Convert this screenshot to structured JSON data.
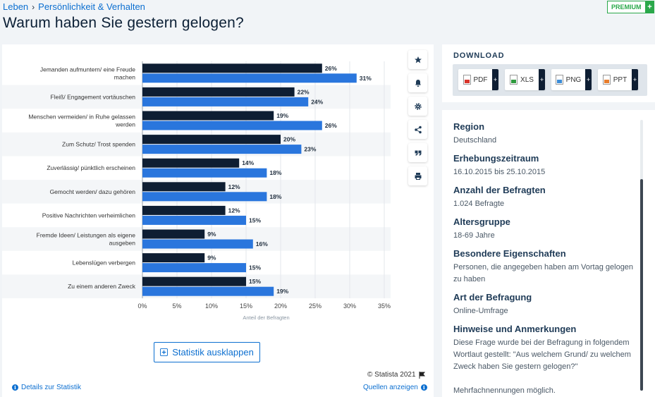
{
  "breadcrumb": {
    "item1": "Leben",
    "sep": "›",
    "item2": "Persönlichkeit & Verhalten"
  },
  "title": "Warum haben Sie gestern gelogen?",
  "premium": {
    "label": "PREMIUM",
    "plus": "+"
  },
  "toolbar": {
    "icons": [
      "star-icon",
      "bell-icon",
      "gear-icon",
      "share-icon",
      "quote-icon",
      "print-icon"
    ]
  },
  "chart_data": {
    "type": "bar",
    "orientation": "horizontal",
    "categories": [
      [
        "Jemanden aufmuntern/ eine Freude",
        "machen"
      ],
      [
        "Fleiß/ Engagement vortäuschen"
      ],
      [
        "Menschen vermeiden/ in Ruhe gelassen",
        "werden"
      ],
      [
        "Zum Schutz/ Trost spenden"
      ],
      [
        "Zuverlässig/ pünktlich erscheinen"
      ],
      [
        "Gemocht werden/ dazu gehören"
      ],
      [
        "Positive Nachrichten verheimlichen"
      ],
      [
        "Fremde Ideen/ Leistungen als eigene",
        "ausgeben"
      ],
      [
        "Lebenslügen verbergen"
      ],
      [
        "Zu einem anderen Zweck"
      ]
    ],
    "series": [
      {
        "values": [
          26,
          22,
          19,
          20,
          14,
          12,
          12,
          9,
          9,
          15
        ],
        "color": "#0e1e33"
      },
      {
        "values": [
          31,
          24,
          26,
          23,
          18,
          18,
          15,
          16,
          15,
          19
        ],
        "color": "#2a76dd"
      }
    ],
    "value_suffix": "%",
    "xlim": [
      0,
      35
    ],
    "xticks": [
      "0%",
      "5%",
      "10%",
      "15%",
      "20%",
      "25%",
      "30%",
      "35%"
    ],
    "xlabel": "Anteil der Befragten",
    "grid": true
  },
  "expand_label": "Statistik ausklappen",
  "copyright": "© Statista 2021",
  "details_link": "Details zur Statistik",
  "sources_link": "Quellen anzeigen",
  "download": {
    "title": "DOWNLOAD",
    "buttons": [
      {
        "label": "PDF",
        "color": "#d9342b"
      },
      {
        "label": "XLS",
        "color": "#2f9a3f"
      },
      {
        "label": "PNG",
        "color": "#3c8dd8"
      },
      {
        "label": "PPT",
        "color": "#e87d2c"
      }
    ],
    "plus": "+"
  },
  "meta": [
    {
      "label": "Region",
      "value": "Deutschland"
    },
    {
      "label": "Erhebungszeitraum",
      "value": "16.10.2015 bis 25.10.2015"
    },
    {
      "label": "Anzahl der Befragten",
      "value": "1.024 Befragte"
    },
    {
      "label": "Altersgruppe",
      "value": "18-69 Jahre"
    },
    {
      "label": "Besondere Eigenschaften",
      "value": "Personen, die angegeben haben am Vortag gelogen zu haben"
    },
    {
      "label": "Art der Befragung",
      "value": "Online-Umfrage"
    },
    {
      "label": "Hinweise und Anmerkungen",
      "value": "Diese Frage wurde bei der Befragung in folgendem Wortlaut gestellt: \"Aus welchem Grund/ zu welchem Zweck haben Sie gestern gelogen?\"\n\nMehrfachnennungen möglich."
    }
  ]
}
